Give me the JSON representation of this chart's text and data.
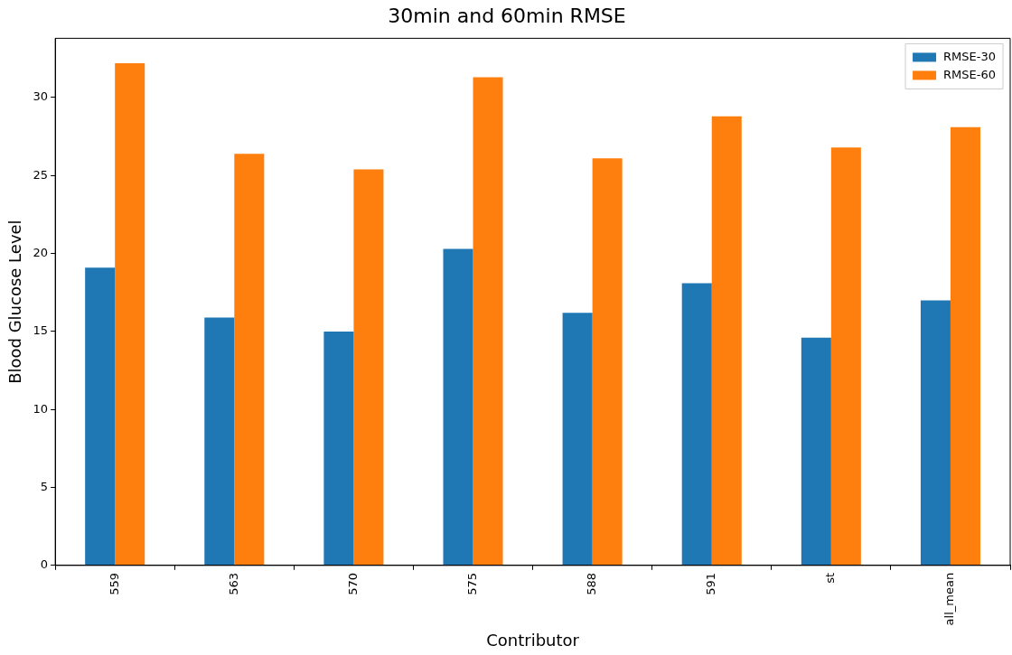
{
  "chart_data": {
    "type": "bar",
    "title": "30min and 60min RMSE",
    "xlabel": "Contributor",
    "ylabel": "Blood Glucose Level",
    "categories": [
      "559",
      "563",
      "570",
      "575",
      "588",
      "591",
      "st",
      "all_mean"
    ],
    "series": [
      {
        "name": "RMSE-30",
        "color": "#1f77b4",
        "values": [
          19.1,
          15.9,
          15.0,
          20.3,
          16.2,
          18.1,
          14.6,
          17.0
        ]
      },
      {
        "name": "RMSE-60",
        "color": "#ff7f0e",
        "values": [
          32.2,
          26.4,
          25.4,
          31.3,
          26.1,
          28.8,
          26.8,
          28.1
        ]
      }
    ],
    "ylim": [
      0,
      33.8
    ],
    "yticks": [
      0,
      5,
      10,
      15,
      20,
      25,
      30
    ],
    "grid": false,
    "legend": "top right"
  }
}
